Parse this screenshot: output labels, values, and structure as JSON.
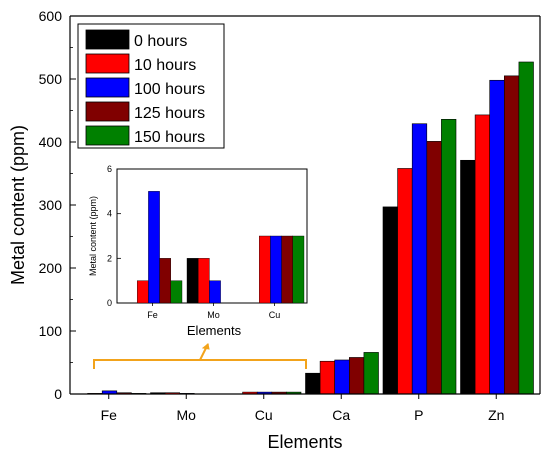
{
  "colors": {
    "background": "#ffffff",
    "axis": "#000000",
    "annotation": "#F2A31B",
    "series": [
      "#000000",
      "#FF0000",
      "#0000FF",
      "#800000",
      "#008000"
    ]
  },
  "chart_data": [
    {
      "type": "bar",
      "title": "",
      "xlabel": "Elements",
      "ylabel": "Metal content (ppm)",
      "categories": [
        "Fe",
        "Mo",
        "Cu",
        "Ca",
        "P",
        "Zn"
      ],
      "ylim": [
        0,
        600
      ],
      "yticks": [
        0,
        100,
        200,
        300,
        400,
        500,
        600
      ],
      "grid": false,
      "legend": "top-left",
      "series": [
        {
          "name": "0 hours",
          "values": [
            0,
            2,
            0,
            33,
            297,
            371
          ]
        },
        {
          "name": "10 hours",
          "values": [
            1,
            2,
            3,
            52,
            358,
            443
          ]
        },
        {
          "name": "100 hours",
          "values": [
            5,
            1,
            3,
            54,
            429,
            498
          ]
        },
        {
          "name": "125 hours",
          "values": [
            2,
            0,
            3,
            58,
            401,
            505
          ]
        },
        {
          "name": "150 hours",
          "values": [
            1,
            0,
            3,
            66,
            436,
            527
          ]
        }
      ]
    },
    {
      "type": "bar",
      "title": "",
      "xlabel": "Elements",
      "ylabel": "Metal content (ppm)",
      "categories": [
        "Fe",
        "Mo",
        "Cu"
      ],
      "ylim": [
        0,
        6
      ],
      "yticks": [
        0,
        2,
        4,
        6
      ],
      "grid": false,
      "legend": "none",
      "series": [
        {
          "name": "0 hours",
          "values": [
            0,
            2,
            0
          ]
        },
        {
          "name": "10 hours",
          "values": [
            1,
            2,
            3
          ]
        },
        {
          "name": "100 hours",
          "values": [
            5,
            1,
            3
          ]
        },
        {
          "name": "125 hours",
          "values": [
            2,
            0,
            3
          ]
        },
        {
          "name": "150 hours",
          "values": [
            1,
            0,
            3
          ]
        }
      ]
    }
  ]
}
